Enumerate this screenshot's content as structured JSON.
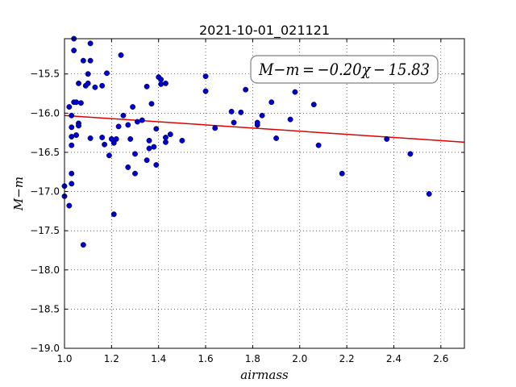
{
  "chart_data": {
    "type": "scatter",
    "title": "2021-10-01_021121",
    "xlabel": "airmass",
    "ylabel": "M−m",
    "xlim": [
      1.0,
      2.7
    ],
    "ylim": [
      -19.0,
      -15.05
    ],
    "y_inverted": false,
    "grid": true,
    "grid_style": "dotted",
    "xticks": [
      "1.0",
      "1.2",
      "1.4",
      "1.6",
      "1.8",
      "2.0",
      "2.2",
      "2.4",
      "2.6"
    ],
    "yticks": [
      "−15.5",
      "−16.0",
      "−16.5",
      "−17.0",
      "−17.5",
      "−18.0",
      "−18.5",
      "−19.0"
    ],
    "annotation": "M−m = −0.20χ − 15.83",
    "point_color": "#0000cc",
    "fit_color": "#dd0000",
    "fit": {
      "slope": -0.2,
      "intercept": -15.83
    },
    "points": [
      [
        1.0,
        -16.93
      ],
      [
        1.0,
        -17.06
      ],
      [
        1.02,
        -17.18
      ],
      [
        1.02,
        -15.92
      ],
      [
        1.03,
        -16.03
      ],
      [
        1.03,
        -16.18
      ],
      [
        1.03,
        -16.3
      ],
      [
        1.03,
        -16.41
      ],
      [
        1.03,
        -16.77
      ],
      [
        1.03,
        -16.9
      ],
      [
        1.04,
        -15.05
      ],
      [
        1.04,
        -15.2
      ],
      [
        1.04,
        -15.86
      ],
      [
        1.05,
        -16.28
      ],
      [
        1.05,
        -15.86
      ],
      [
        1.06,
        -16.13
      ],
      [
        1.06,
        -16.16
      ],
      [
        1.06,
        -15.62
      ],
      [
        1.07,
        -15.87
      ],
      [
        1.08,
        -17.68
      ],
      [
        1.08,
        -15.33
      ],
      [
        1.09,
        -15.65
      ],
      [
        1.1,
        -15.5
      ],
      [
        1.1,
        -15.62
      ],
      [
        1.11,
        -15.33
      ],
      [
        1.11,
        -15.11
      ],
      [
        1.11,
        -16.32
      ],
      [
        1.13,
        -15.67
      ],
      [
        1.16,
        -16.31
      ],
      [
        1.16,
        -15.65
      ],
      [
        1.17,
        -16.4
      ],
      [
        1.18,
        -15.49
      ],
      [
        1.19,
        -16.54
      ],
      [
        1.2,
        -16.33
      ],
      [
        1.21,
        -16.38
      ],
      [
        1.21,
        -17.29
      ],
      [
        1.22,
        -16.33
      ],
      [
        1.23,
        -16.17
      ],
      [
        1.24,
        -15.26
      ],
      [
        1.25,
        -16.03
      ],
      [
        1.27,
        -16.15
      ],
      [
        1.27,
        -16.69
      ],
      [
        1.28,
        -16.33
      ],
      [
        1.29,
        -15.92
      ],
      [
        1.3,
        -16.52
      ],
      [
        1.3,
        -16.77
      ],
      [
        1.31,
        -16.11
      ],
      [
        1.33,
        -16.09
      ],
      [
        1.35,
        -15.66
      ],
      [
        1.35,
        -16.6
      ],
      [
        1.36,
        -16.45
      ],
      [
        1.36,
        -16.35
      ],
      [
        1.37,
        -15.88
      ],
      [
        1.38,
        -16.43
      ],
      [
        1.39,
        -16.2
      ],
      [
        1.39,
        -16.66
      ],
      [
        1.4,
        -15.54
      ],
      [
        1.41,
        -15.57
      ],
      [
        1.41,
        -15.63
      ],
      [
        1.43,
        -16.37
      ],
      [
        1.43,
        -16.31
      ],
      [
        1.43,
        -15.62
      ],
      [
        1.45,
        -16.27
      ],
      [
        1.5,
        -16.35
      ],
      [
        1.6,
        -15.53
      ],
      [
        1.6,
        -15.72
      ],
      [
        1.64,
        -16.19
      ],
      [
        1.71,
        -15.98
      ],
      [
        1.72,
        -16.12
      ],
      [
        1.75,
        -15.99
      ],
      [
        1.77,
        -15.7
      ],
      [
        1.82,
        -16.15
      ],
      [
        1.82,
        -16.12
      ],
      [
        1.84,
        -16.03
      ],
      [
        1.88,
        -15.86
      ],
      [
        1.9,
        -16.32
      ],
      [
        1.96,
        -16.08
      ],
      [
        1.98,
        -15.73
      ],
      [
        2.06,
        -15.89
      ],
      [
        2.08,
        -16.41
      ],
      [
        2.18,
        -16.77
      ],
      [
        2.37,
        -16.33
      ],
      [
        2.47,
        -16.52
      ],
      [
        2.55,
        -17.03
      ]
    ]
  }
}
